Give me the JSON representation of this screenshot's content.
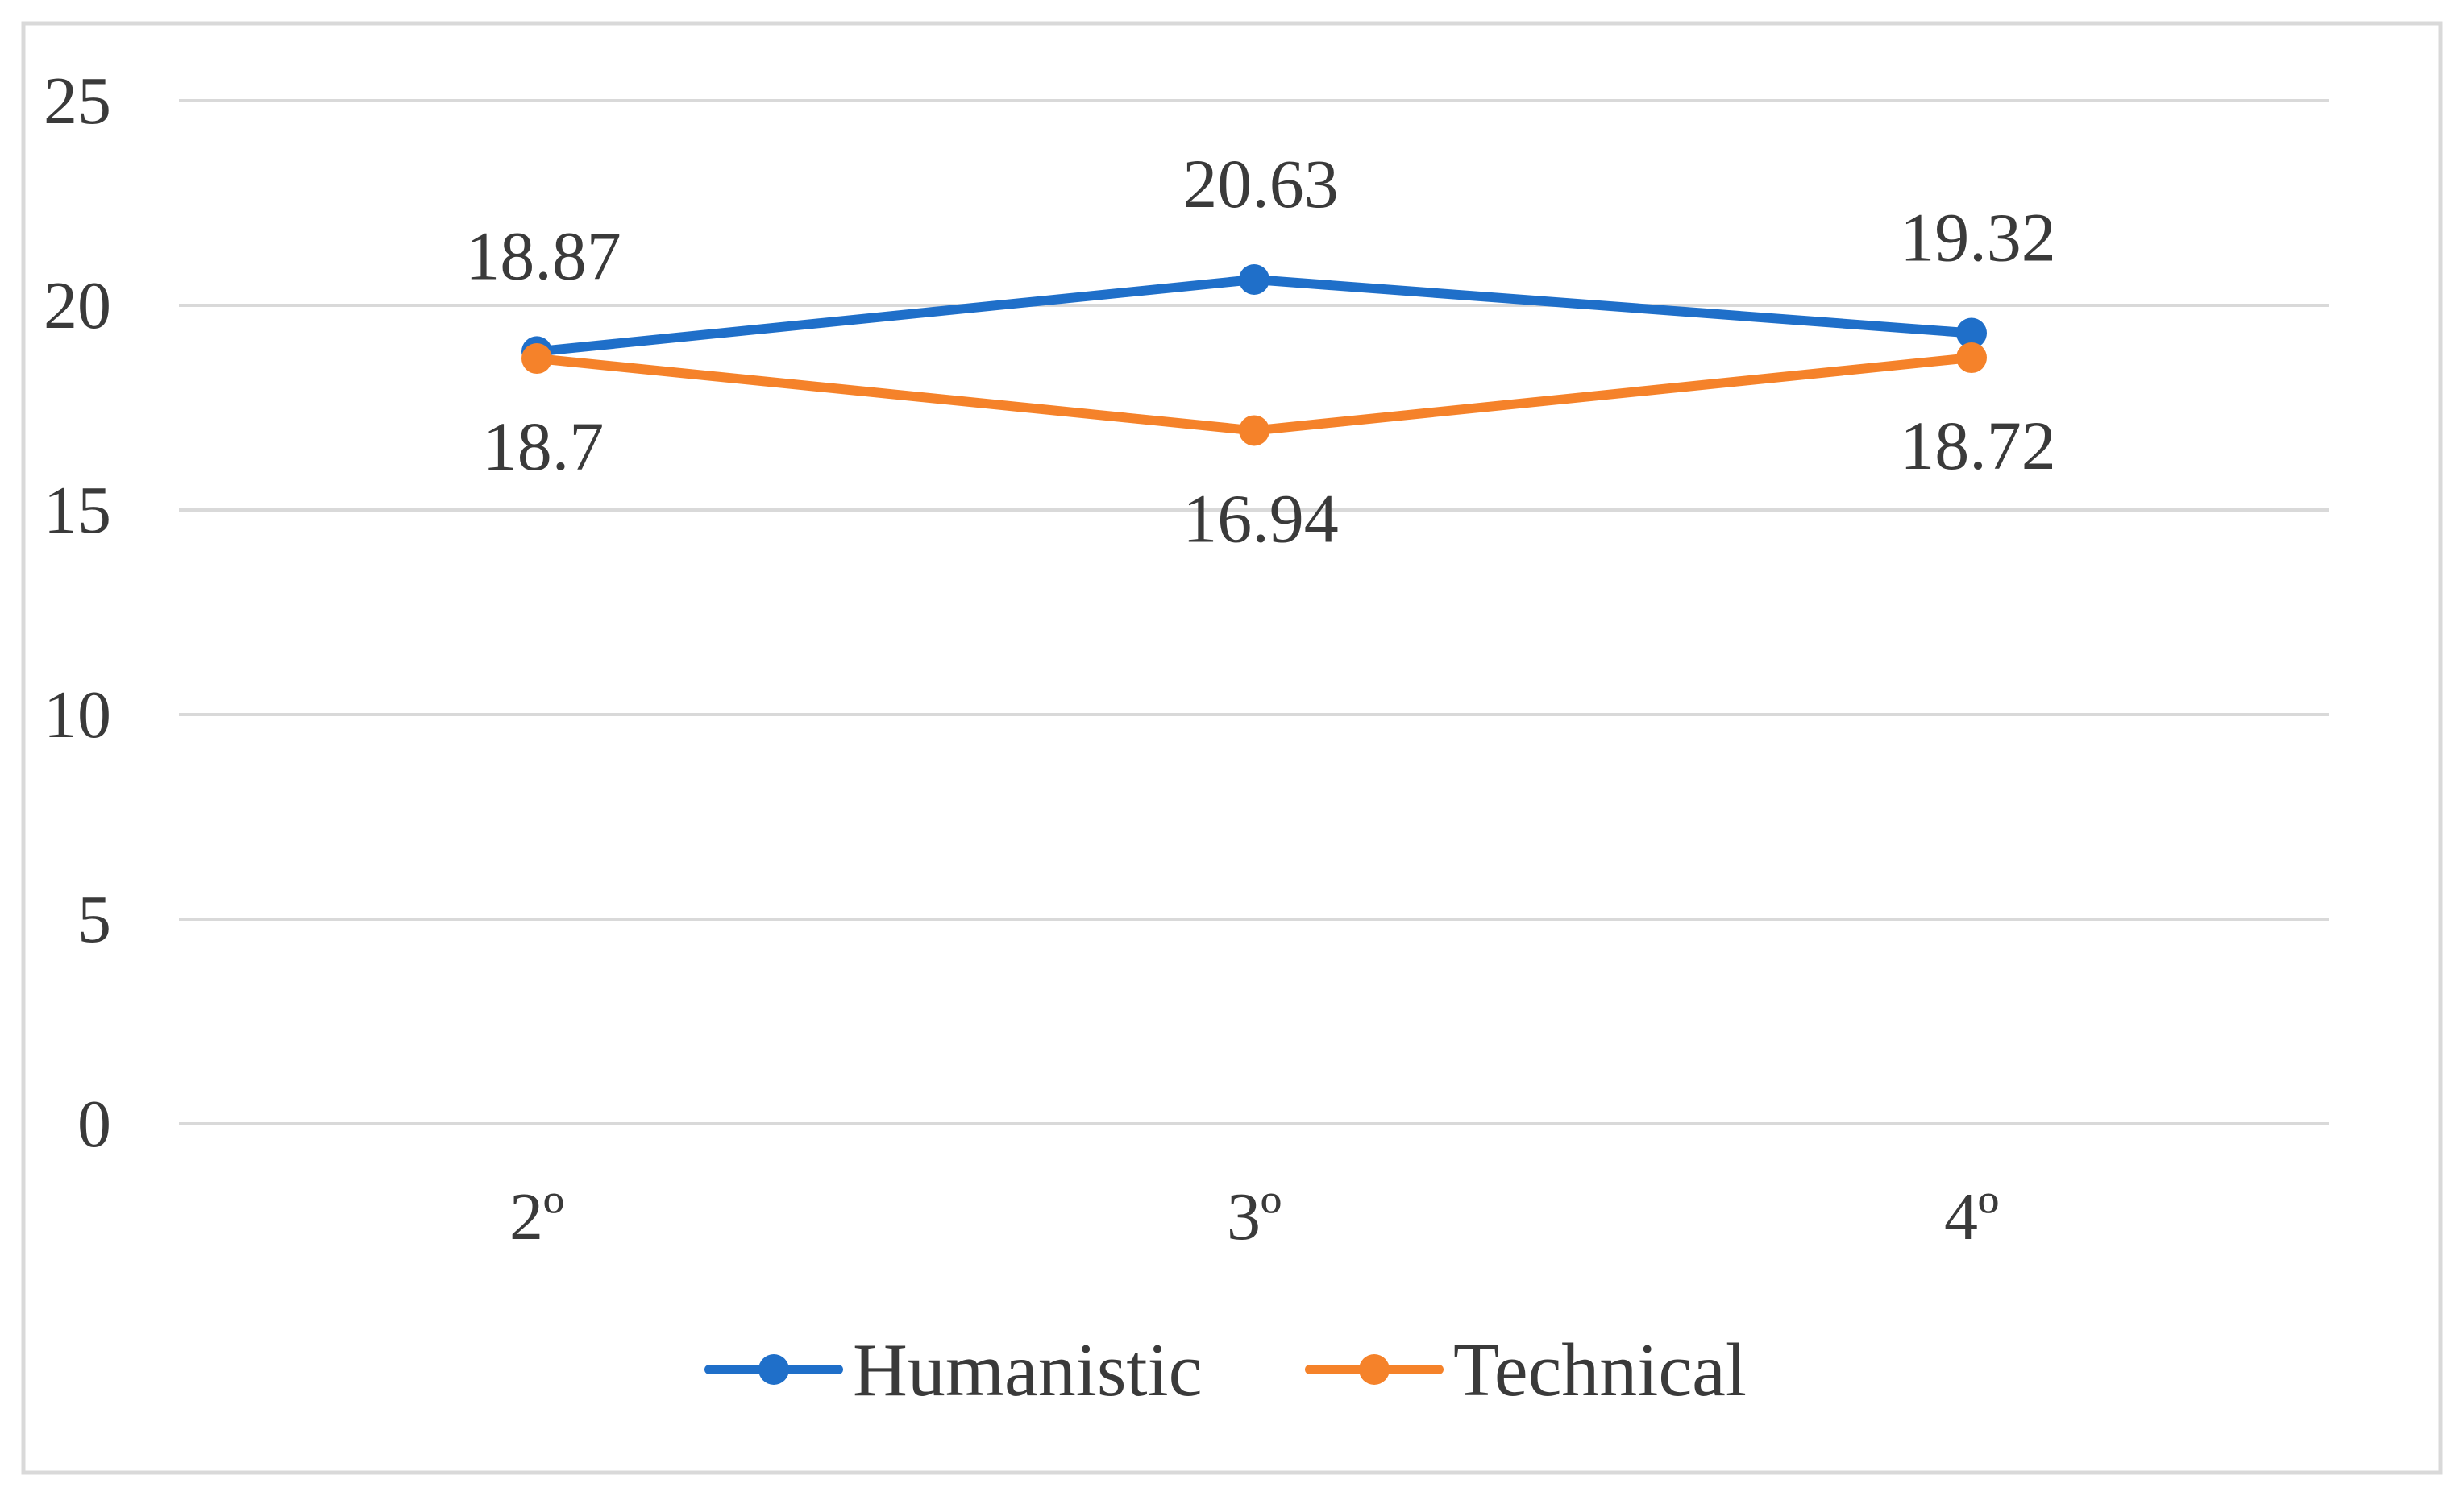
{
  "chart_data": {
    "type": "line",
    "categories": [
      "2º",
      "3º",
      "4º"
    ],
    "series": [
      {
        "name": "Humanistic",
        "values": [
          18.87,
          20.63,
          19.32
        ],
        "labels": [
          "18.87",
          "20.63",
          "19.32"
        ],
        "color": "#1f6fc9",
        "label_position": "above"
      },
      {
        "name": "Technical",
        "values": [
          18.7,
          16.94,
          18.72
        ],
        "labels": [
          "18.7",
          "16.94",
          "18.72"
        ],
        "color": "#f5822a",
        "label_position": "below"
      }
    ],
    "yticks": [
      "0",
      "5",
      "10",
      "15",
      "20",
      "25"
    ],
    "ylim": [
      0,
      25
    ],
    "grid": true,
    "legend_position": "bottom",
    "title": "",
    "xlabel": "",
    "ylabel": ""
  }
}
